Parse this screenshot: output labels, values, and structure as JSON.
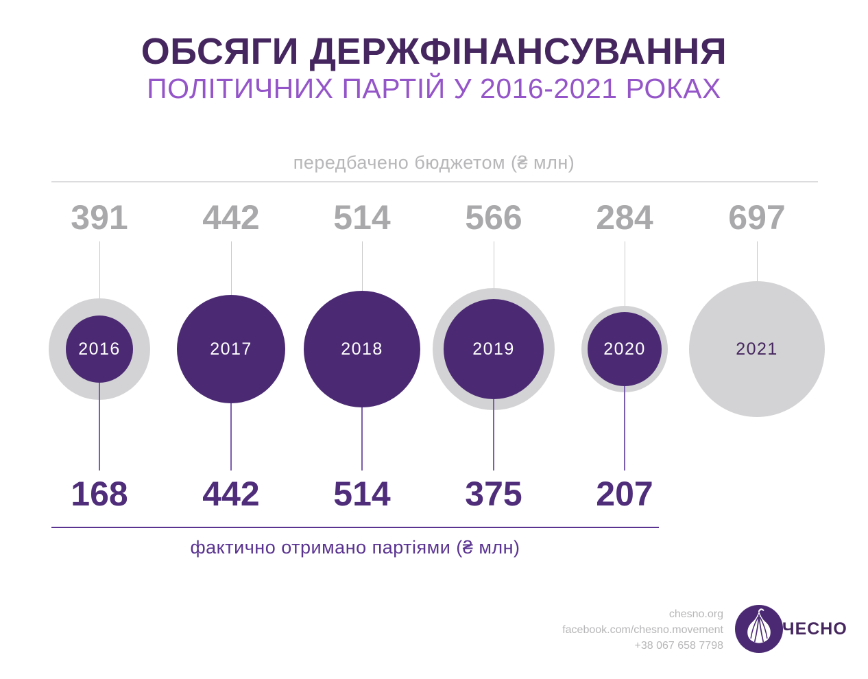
{
  "title": "ОБСЯГИ ДЕРЖФІНАНСУВАННЯ",
  "subtitle": "ПОЛІТИЧНИХ ПАРТІЙ У 2016-2021 РОКАХ",
  "chart_data": {
    "type": "bubble",
    "title": "ОБСЯГИ ДЕРЖФІНАНСУВАННЯ ПОЛІТИЧНИХ ПАРТІЙ У 2016-2021 РОКАХ",
    "categories": [
      "2016",
      "2017",
      "2018",
      "2019",
      "2020",
      "2021"
    ],
    "series": [
      {
        "name": "передбачено бюджетом (₴ млн)",
        "role": "budget",
        "color": "#d3d3d5",
        "values": [
          391,
          442,
          514,
          566,
          284,
          697
        ]
      },
      {
        "name": "фактично отримано партіями (₴ млн)",
        "role": "actual",
        "color": "#4b2a73",
        "values": [
          168,
          442,
          514,
          375,
          207,
          null
        ]
      }
    ],
    "top_label": "передбачено бюджетом (₴ млн)",
    "bottom_label": "фактично отримано партіями (₴ млн)",
    "unit": "₴ млн",
    "grid": false,
    "legend_position": "axis-labels-top-and-bottom",
    "encoding": "circle area proportional to value; gray = budgeted, purple = actually received"
  },
  "footer": {
    "site": "chesno.org",
    "facebook": "facebook.com/chesno.movement",
    "phone": "+38 067 658 7798",
    "brand": "ЧЕСНО",
    "logo": "garlic-icon"
  },
  "colors": {
    "title": "#45265e",
    "subtitle": "#9455c8",
    "budget_gray": "#d3d3d5",
    "actual_purple": "#4b2a73",
    "value_gray": "#a9a9ab",
    "value_purple": "#4f2d7a",
    "label_gray": "#b7b7b9",
    "label_purple": "#5a3390",
    "connector_gray": "#c9c9cb",
    "connector_purple": "#7a5dab",
    "footer_gray": "#b6b6b8",
    "year_label_light": "#ffffff",
    "year_label_dark": "#45265e"
  }
}
